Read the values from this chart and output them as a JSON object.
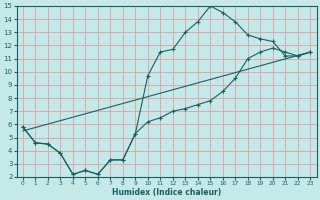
{
  "xlabel": "Humidex (Indice chaleur)",
  "xlim": [
    -0.5,
    23.5
  ],
  "ylim": [
    2,
    15
  ],
  "xticks": [
    0,
    1,
    2,
    3,
    4,
    5,
    6,
    7,
    8,
    9,
    10,
    11,
    12,
    13,
    14,
    15,
    16,
    17,
    18,
    19,
    20,
    21,
    22,
    23
  ],
  "yticks": [
    2,
    3,
    4,
    5,
    6,
    7,
    8,
    9,
    10,
    11,
    12,
    13,
    14,
    15
  ],
  "bg_color": "#c5e8e8",
  "line_color": "#1a6060",
  "grid_color": "#e0a0a0",
  "line1_x": [
    0,
    1,
    2,
    3,
    4,
    5,
    6,
    7,
    8,
    9,
    10,
    11,
    12,
    13,
    14,
    15,
    16,
    17,
    18,
    19,
    20,
    21,
    22,
    23
  ],
  "line1_y": [
    5.8,
    4.6,
    4.5,
    3.8,
    2.2,
    2.5,
    2.2,
    3.3,
    3.3,
    5.3,
    9.7,
    11.5,
    11.7,
    13.0,
    13.8,
    15.0,
    14.5,
    13.8,
    12.8,
    12.5,
    12.3,
    11.2,
    11.2,
    11.5
  ],
  "line2_x": [
    0,
    1,
    2,
    3,
    4,
    5,
    6,
    7,
    8,
    9,
    10,
    11,
    12,
    13,
    14,
    15,
    16,
    17,
    18,
    19,
    20,
    21,
    22,
    23
  ],
  "line2_y": [
    5.8,
    4.6,
    4.5,
    3.8,
    2.2,
    2.5,
    2.2,
    3.3,
    3.3,
    5.3,
    6.2,
    6.5,
    7.0,
    7.2,
    7.5,
    7.8,
    8.5,
    9.5,
    11.0,
    11.5,
    11.8,
    11.5,
    11.2,
    11.5
  ],
  "line3_x": [
    0,
    23
  ],
  "line3_y": [
    5.5,
    11.5
  ]
}
